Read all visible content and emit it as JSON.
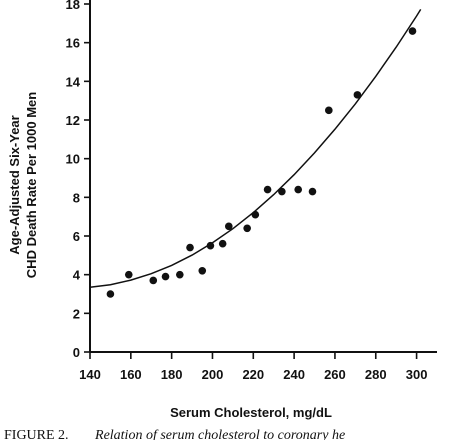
{
  "chart_data": {
    "type": "scatter",
    "xlabel": "Serum Cholesterol, mg/dL",
    "ylabel_lines": [
      "Age-Adjusted Six-Year",
      "CHD Death Rate Per 1000 Men"
    ],
    "xlim": [
      140,
      310
    ],
    "ylim": [
      0,
      18
    ],
    "x_ticks": [
      140,
      160,
      180,
      200,
      220,
      240,
      260,
      280,
      300
    ],
    "y_ticks": [
      0,
      2,
      4,
      6,
      8,
      10,
      12,
      14,
      16,
      18
    ],
    "grid": false,
    "series": [
      {
        "points": [
          {
            "x": 150,
            "y": 3.0
          },
          {
            "x": 159,
            "y": 4.0
          },
          {
            "x": 171,
            "y": 3.7
          },
          {
            "x": 177,
            "y": 3.9
          },
          {
            "x": 184,
            "y": 4.0
          },
          {
            "x": 189,
            "y": 5.4
          },
          {
            "x": 195,
            "y": 4.2
          },
          {
            "x": 199,
            "y": 5.5
          },
          {
            "x": 205,
            "y": 5.6
          },
          {
            "x": 208,
            "y": 6.5
          },
          {
            "x": 217,
            "y": 6.4
          },
          {
            "x": 221,
            "y": 7.1
          },
          {
            "x": 227,
            "y": 8.4
          },
          {
            "x": 234,
            "y": 8.3
          },
          {
            "x": 242,
            "y": 8.4
          },
          {
            "x": 249,
            "y": 8.3
          },
          {
            "x": 257,
            "y": 12.5
          },
          {
            "x": 271,
            "y": 13.3
          },
          {
            "x": 298,
            "y": 16.6
          }
        ]
      }
    ],
    "fit_curve": {
      "x": [
        140,
        150,
        160,
        170,
        180,
        190,
        200,
        210,
        220,
        230,
        240,
        250,
        260,
        270,
        280,
        290,
        300,
        302
      ],
      "y": [
        3.35,
        3.48,
        3.72,
        4.05,
        4.48,
        5.01,
        5.65,
        6.38,
        7.21,
        8.14,
        9.17,
        10.3,
        11.52,
        12.84,
        14.26,
        15.77,
        17.38,
        17.72
      ]
    }
  },
  "caption": {
    "prefix": "FIGURE 2.",
    "text": "Relation of serum cholesterol to coronary he"
  }
}
